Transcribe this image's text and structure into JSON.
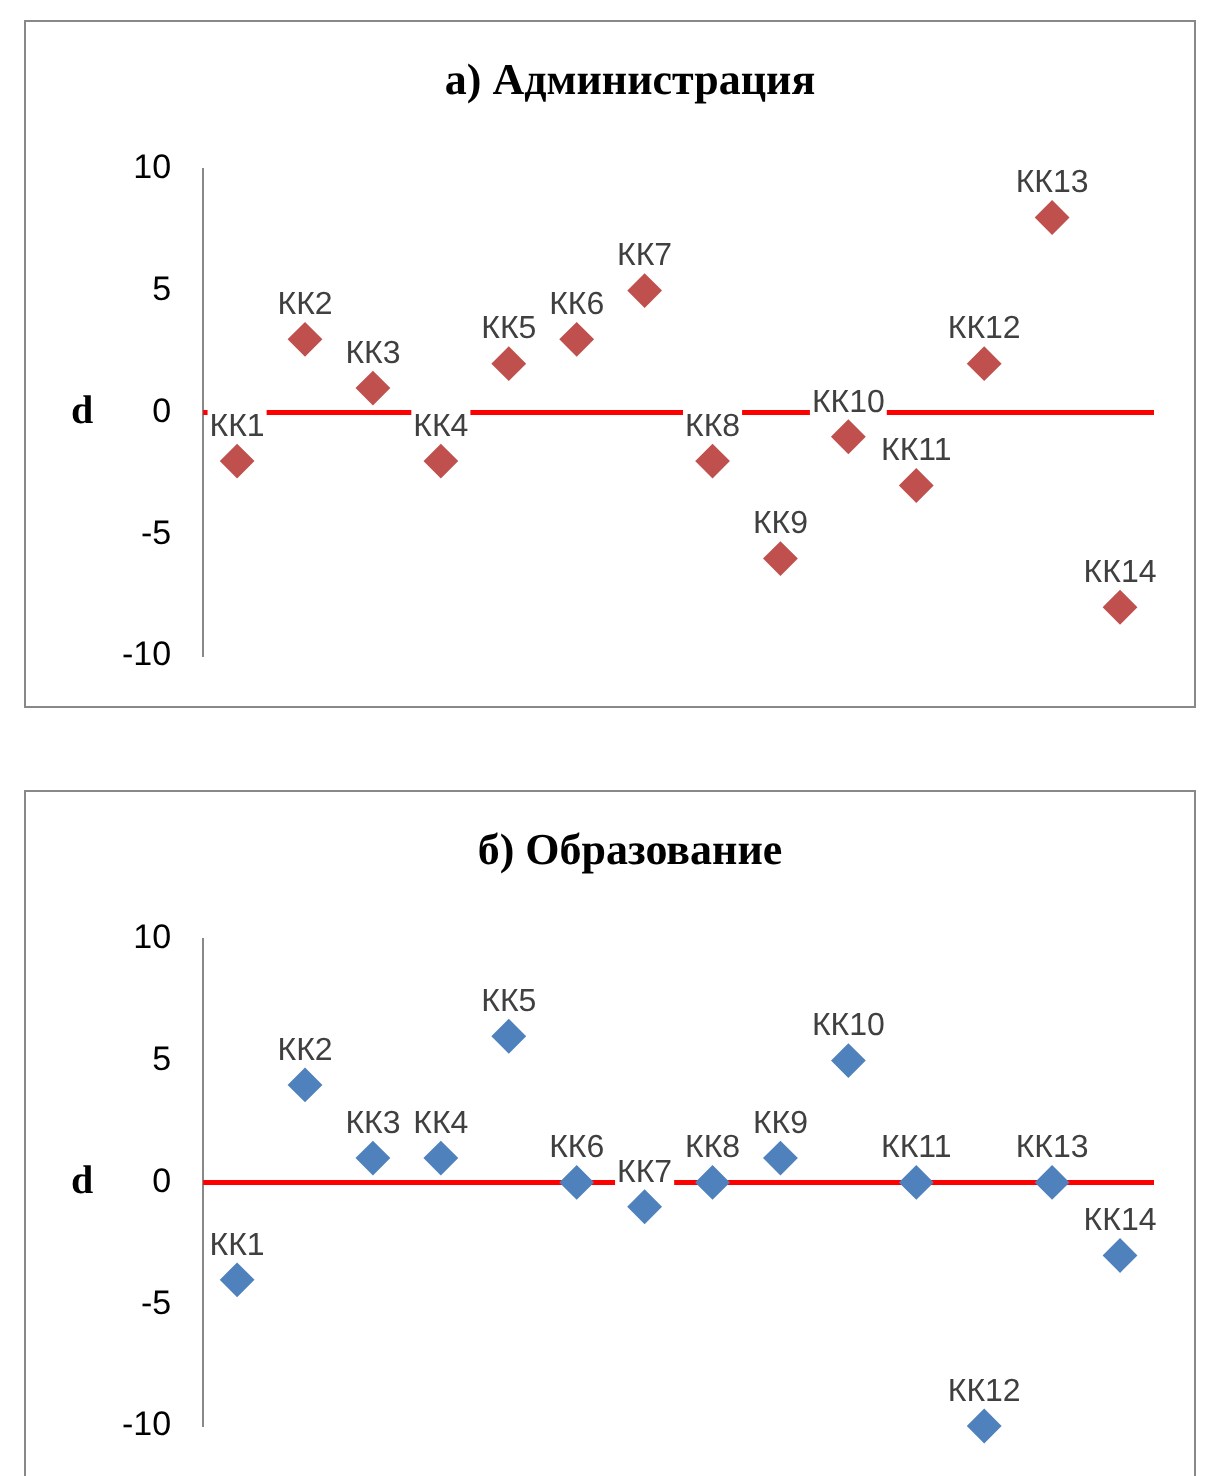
{
  "chart_data": [
    {
      "type": "scatter",
      "title": "а) Администрация",
      "ylabel": "d",
      "categories": [
        "КК1",
        "КК2",
        "КК3",
        "КК4",
        "КК5",
        "КК6",
        "КК7",
        "КК8",
        "КК9",
        "КК10",
        "КК11",
        "КК12",
        "КК13",
        "КК14"
      ],
      "series": [
        {
          "color": "#c0504d",
          "values": [
            -2,
            3,
            1,
            -2,
            2,
            3,
            5,
            -2,
            -6,
            -1,
            -3,
            2,
            8,
            -8
          ]
        }
      ],
      "ylim": [
        -10,
        10
      ],
      "yticks": [
        -10,
        -5,
        0,
        5,
        10
      ],
      "grid": false,
      "legend": false,
      "marker": "diamond",
      "tick_labels": "y",
      "ref_lines": [
        {
          "axis": "y",
          "value": 0,
          "color": "#ff0000"
        }
      ]
    },
    {
      "type": "scatter",
      "title": "б) Образование",
      "ylabel": "d",
      "categories": [
        "КК1",
        "КК2",
        "КК3",
        "КК4",
        "КК5",
        "КК6",
        "КК7",
        "КК8",
        "КК9",
        "КК10",
        "КК11",
        "КК12",
        "КК13",
        "КК14"
      ],
      "series": [
        {
          "color": "#4f81bd",
          "values": [
            -4,
            4,
            1,
            1,
            6,
            0,
            -1,
            0,
            1,
            5,
            0,
            -10,
            0,
            -3
          ]
        }
      ],
      "ylim": [
        -10,
        10
      ],
      "yticks": [
        -10,
        -5,
        0,
        5,
        10
      ],
      "grid": false,
      "legend": false,
      "marker": "diamond",
      "tick_labels": "y",
      "ref_lines": [
        {
          "axis": "y",
          "value": 0,
          "color": "#ff0000"
        }
      ]
    }
  ]
}
